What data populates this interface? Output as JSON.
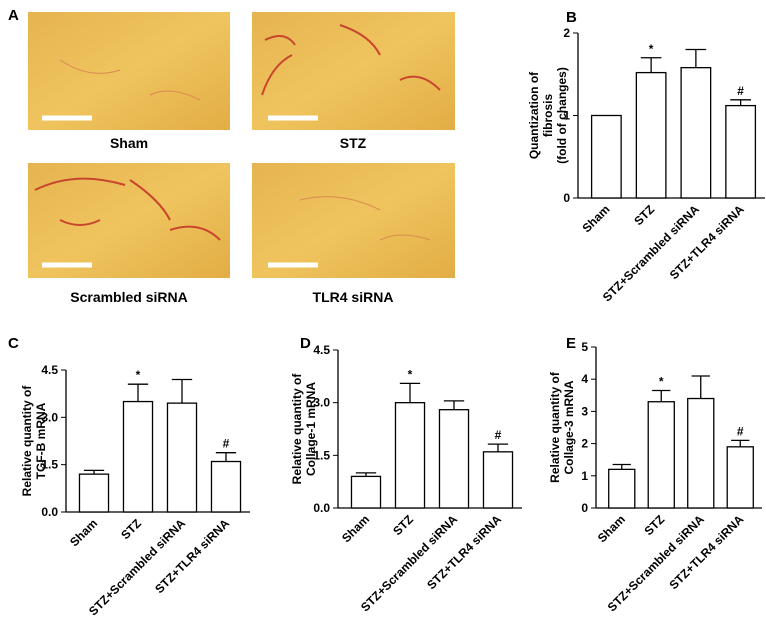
{
  "panel_labels": [
    "A",
    "B",
    "C",
    "D",
    "E"
  ],
  "micrographs": [
    "Sham",
    "STZ",
    "Scrambled siRNA",
    "TLR4 siRNA"
  ],
  "chart_data": [
    {
      "type": "bar",
      "ylabel_lines": [
        "Quantization of",
        "fibrosis",
        "(fold of changes)"
      ],
      "categories": [
        "Sham",
        "STZ",
        "STZ+Scrambled siRNA",
        "STZ+TLR4 siRNA"
      ],
      "values": [
        1.0,
        1.52,
        1.58,
        1.12
      ],
      "errors": [
        0,
        0.18,
        0.22,
        0.07
      ],
      "annotations": [
        null,
        "*",
        null,
        "#"
      ],
      "color": "#ffffff",
      "ylim": [
        0,
        2
      ],
      "yticks": [
        0,
        1,
        2
      ]
    },
    {
      "type": "bar",
      "ylabel_lines": [
        "Relative quantity of",
        "TGF-B mRNA"
      ],
      "categories": [
        "Sham",
        "STZ",
        "STZ+Scrambled siRNA",
        "STZ+TLR4 siRNA"
      ],
      "values": [
        1.2,
        3.5,
        3.45,
        1.6
      ],
      "errors": [
        0.12,
        0.55,
        0.75,
        0.28
      ],
      "annotations": [
        null,
        "*",
        null,
        "#"
      ],
      "color": "#ffffff",
      "ylim": [
        0,
        4.5
      ],
      "yticks": [
        {
          "value": 0,
          "label": "0.0"
        },
        1.5,
        {
          "value": 3,
          "label": "3.0"
        },
        4.5
      ]
    },
    {
      "type": "bar",
      "ylabel_lines": [
        "Relative quantity of",
        "Collage-1 mRNA"
      ],
      "categories": [
        "Sham",
        "STZ",
        "STZ+Scrambled siRNA",
        "STZ+TLR4 siRNA"
      ],
      "values": [
        0.9,
        3.0,
        2.8,
        1.6
      ],
      "errors": [
        0.1,
        0.55,
        0.25,
        0.22
      ],
      "annotations": [
        null,
        "*",
        null,
        "#"
      ],
      "color": "#ffffff",
      "ylim": [
        0,
        4.5
      ],
      "yticks": [
        {
          "value": 0,
          "label": "0.0"
        },
        1.5,
        {
          "value": 3,
          "label": "3.0"
        },
        4.5
      ]
    },
    {
      "type": "bar",
      "ylabel_lines": [
        "Relative quantity of",
        "Collage-3 mRNA"
      ],
      "categories": [
        "Sham",
        "STZ",
        "STZ+Scrambled siRNA",
        "STZ+TLR4 siRNA"
      ],
      "values": [
        1.2,
        3.3,
        3.4,
        1.9
      ],
      "errors": [
        0.15,
        0.35,
        0.7,
        0.2
      ],
      "annotations": [
        null,
        "*",
        null,
        "#"
      ],
      "color": "#ffffff",
      "ylim": [
        0,
        5
      ],
      "yticks": [
        0,
        1,
        2,
        3,
        4,
        5
      ]
    }
  ]
}
